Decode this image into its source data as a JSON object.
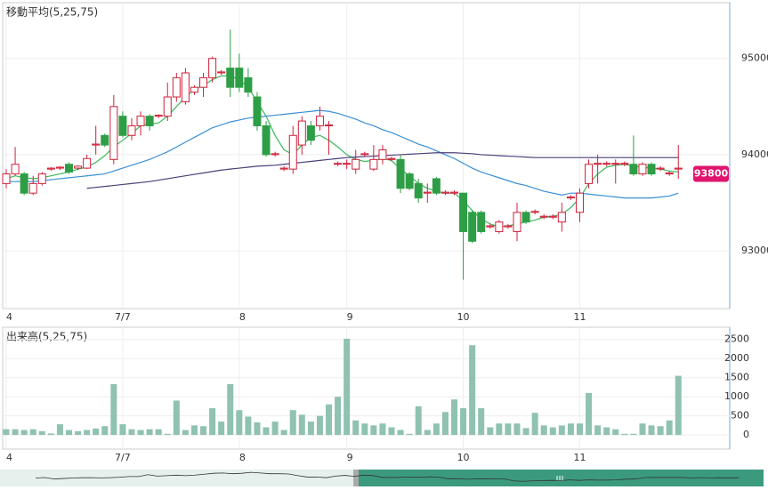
{
  "chart_data": [
    {
      "type": "candlestick",
      "title": "移動平均(5,25,75)",
      "categories": [
        "4",
        null,
        null,
        null,
        null,
        null,
        null,
        null,
        null,
        null,
        null,
        null,
        null,
        "7/7",
        null,
        null,
        null,
        null,
        null,
        null,
        null,
        null,
        null,
        null,
        null,
        null,
        "8",
        null,
        null,
        null,
        null,
        null,
        null,
        null,
        null,
        null,
        null,
        null,
        "9",
        null,
        null,
        null,
        null,
        null,
        null,
        null,
        null,
        null,
        null,
        null,
        null,
        "10",
        null,
        null,
        null,
        null,
        null,
        null,
        null,
        null,
        null,
        null,
        null,
        null,
        "11",
        null,
        null,
        null,
        null,
        null,
        null,
        null,
        null,
        null,
        null,
        null
      ],
      "open": [
        93700,
        93800,
        93800,
        93600,
        93700,
        93850,
        93860,
        93900,
        93860,
        93860,
        94100,
        94200,
        93950,
        94400,
        94200,
        94300,
        94400,
        94400,
        94400,
        94600,
        94550,
        94650,
        94700,
        94800,
        94850,
        94900,
        94900,
        94800,
        94600,
        94300,
        94000,
        93850,
        93850,
        94100,
        94300,
        94300,
        94300,
        93900,
        93900,
        93850,
        94000,
        93850,
        93950,
        93950,
        93950,
        93800,
        93700,
        93600,
        93750,
        93600,
        93600,
        93600,
        93400,
        93400,
        93250,
        93200,
        93250,
        93200,
        93400,
        93400,
        93350,
        93350,
        93300,
        93550,
        93400,
        93700,
        93900,
        93900,
        93900,
        93900,
        93900,
        93800,
        93900,
        93850,
        93800,
        93850
      ],
      "high": [
        93850,
        94080,
        93820,
        93780,
        93820,
        93870,
        93880,
        93920,
        93890,
        94000,
        94300,
        94220,
        94620,
        94450,
        94380,
        94450,
        94420,
        94420,
        94750,
        94850,
        94900,
        94720,
        94850,
        95020,
        94880,
        95300,
        95050,
        94900,
        94650,
        94350,
        94030,
        93880,
        94300,
        94400,
        94350,
        94500,
        94350,
        93930,
        93950,
        94050,
        94030,
        94100,
        94100,
        93980,
        94000,
        93820,
        93750,
        93700,
        93770,
        93630,
        93630,
        93600,
        93420,
        93420,
        93280,
        93320,
        93280,
        93500,
        93420,
        93430,
        93380,
        93380,
        93500,
        93580,
        93650,
        93950,
        94000,
        93930,
        93950,
        93930,
        94200,
        93920,
        93920,
        93880,
        93830,
        94100
      ],
      "low": [
        93650,
        93780,
        93580,
        93580,
        93680,
        93830,
        93840,
        93800,
        93840,
        93850,
        94000,
        94080,
        93900,
        94180,
        94150,
        94200,
        94250,
        94380,
        94350,
        94550,
        94520,
        94620,
        94600,
        94750,
        94830,
        94600,
        94650,
        94600,
        94250,
        93980,
        93980,
        93830,
        93800,
        94000,
        94100,
        94250,
        94000,
        93880,
        93850,
        93800,
        93980,
        93830,
        93900,
        93930,
        93600,
        93630,
        93500,
        93500,
        93580,
        93580,
        93580,
        92700,
        93080,
        93180,
        93230,
        93180,
        93230,
        93100,
        93280,
        93380,
        93330,
        93330,
        93200,
        93530,
        93300,
        93650,
        93700,
        93880,
        93700,
        93880,
        93780,
        93780,
        93780,
        93830,
        93780,
        93750
      ],
      "close": [
        93800,
        93900,
        93600,
        93700,
        93800,
        93860,
        93870,
        93820,
        93880,
        93960,
        94110,
        94100,
        94500,
        94200,
        94300,
        94400,
        94300,
        94410,
        94600,
        94800,
        94850,
        94700,
        94800,
        95000,
        94860,
        94700,
        94700,
        94650,
        94300,
        94000,
        94010,
        93860,
        94200,
        94350,
        94150,
        94400,
        94310,
        93910,
        93910,
        93950,
        94010,
        93950,
        94050,
        93960,
        93650,
        93650,
        93550,
        93610,
        93600,
        93610,
        93610,
        93200,
        93100,
        93200,
        93260,
        93300,
        93260,
        93400,
        93300,
        93410,
        93360,
        93360,
        93400,
        93560,
        93600,
        93900,
        93910,
        93910,
        93910,
        93910,
        93800,
        93900,
        93800,
        93860,
        93810,
        93860
      ],
      "up_color": "#d0213a",
      "down_color": "#2e9e46",
      "series": [
        {
          "name": "5",
          "color": "#3cb95c",
          "values": [
            93750,
            93780,
            93760,
            93750,
            93760,
            93780,
            93800,
            93820,
            93850,
            93870,
            93920,
            93990,
            94080,
            94150,
            94220,
            94300,
            94320,
            94330,
            94400,
            94500,
            94600,
            94680,
            94720,
            94780,
            94820,
            94820,
            94780,
            94700,
            94550,
            94400,
            94200,
            94050,
            94000,
            94100,
            94180,
            94200,
            94150,
            94080,
            94000,
            93950,
            93930,
            93940,
            93960,
            93940,
            93850,
            93780,
            93700,
            93650,
            93620,
            93600,
            93600,
            93520,
            93420,
            93330,
            93280,
            93250,
            93260,
            93280,
            93300,
            93320,
            93350,
            93360,
            93380,
            93450,
            93550,
            93700,
            93800,
            93870,
            93890,
            93900,
            93880,
            93870,
            93860,
            93850,
            93830,
            93820
          ]
        },
        {
          "name": "25",
          "color": "#3a8fd6",
          "values": [
            93720,
            93720,
            93720,
            93720,
            93730,
            93740,
            93750,
            93760,
            93770,
            93780,
            93790,
            93800,
            93830,
            93860,
            93890,
            93920,
            93950,
            93990,
            94030,
            94080,
            94130,
            94180,
            94230,
            94280,
            94310,
            94340,
            94360,
            94380,
            94390,
            94400,
            94410,
            94420,
            94430,
            94440,
            94450,
            94460,
            94450,
            94430,
            94400,
            94370,
            94330,
            94300,
            94260,
            94230,
            94190,
            94150,
            94110,
            94080,
            94040,
            94000,
            93960,
            93910,
            93860,
            93820,
            93790,
            93760,
            93730,
            93700,
            93680,
            93650,
            93620,
            93600,
            93580,
            93600,
            93600,
            93590,
            93580,
            93570,
            93560,
            93550,
            93550,
            93550,
            93550,
            93560,
            93570,
            93600
          ]
        },
        {
          "name": "75",
          "color": "#4b3f7a",
          "values": [
            null,
            null,
            null,
            null,
            null,
            null,
            null,
            null,
            null,
            93650,
            93660,
            93670,
            93680,
            93690,
            93700,
            93710,
            93720,
            93735,
            93750,
            93765,
            93780,
            93795,
            93810,
            93825,
            93840,
            93850,
            93860,
            93870,
            93880,
            93885,
            93890,
            93900,
            93910,
            93920,
            93930,
            93940,
            93950,
            93960,
            93970,
            93975,
            93980,
            93985,
            93990,
            93995,
            94000,
            94005,
            94010,
            94015,
            94020,
            94020,
            94020,
            94015,
            94010,
            94000,
            93995,
            93990,
            93985,
            93980,
            93975,
            93970,
            93970,
            93970,
            93970,
            93970,
            93970,
            93970,
            93970,
            93970,
            93970,
            93970,
            93970,
            93970,
            93970,
            93970,
            93970,
            93970
          ]
        }
      ],
      "last_price": 93800,
      "last_price_color": "#e0156e",
      "ylim": [
        92400,
        95580
      ],
      "yticks": [
        93000,
        94000,
        95000
      ],
      "grid": true
    },
    {
      "type": "bar",
      "title": "出来高(5,25,75)",
      "categories": [
        "4",
        null,
        null,
        null,
        null,
        null,
        null,
        null,
        null,
        null,
        null,
        null,
        null,
        "7/7",
        null,
        null,
        null,
        null,
        null,
        null,
        null,
        null,
        null,
        null,
        null,
        null,
        "8",
        null,
        null,
        null,
        null,
        null,
        null,
        null,
        null,
        null,
        null,
        null,
        "9",
        null,
        null,
        null,
        null,
        null,
        null,
        null,
        null,
        null,
        null,
        null,
        null,
        "10",
        null,
        null,
        null,
        null,
        null,
        null,
        null,
        null,
        null,
        null,
        null,
        null,
        "11",
        null,
        null,
        null,
        null,
        null,
        null,
        null,
        null,
        null,
        null,
        null
      ],
      "values": [
        150,
        150,
        130,
        150,
        100,
        40,
        280,
        130,
        100,
        130,
        170,
        230,
        1330,
        280,
        150,
        130,
        150,
        150,
        30,
        900,
        130,
        250,
        230,
        700,
        350,
        1330,
        650,
        480,
        330,
        200,
        350,
        130,
        650,
        530,
        350,
        500,
        800,
        1000,
        2520,
        380,
        300,
        250,
        300,
        200,
        130,
        30,
        750,
        130,
        300,
        600,
        930,
        700,
        2350,
        700,
        200,
        300,
        300,
        300,
        180,
        580,
        250,
        200,
        250,
        300,
        300,
        1100,
        250,
        200,
        150,
        30,
        30,
        300,
        250,
        230,
        380,
        1550
      ],
      "color": "#8fc2b0",
      "ylim": [
        -370,
        2820
      ],
      "yticks": [
        0,
        500,
        1000,
        1500,
        2000,
        2500
      ],
      "grid": true
    }
  ]
}
